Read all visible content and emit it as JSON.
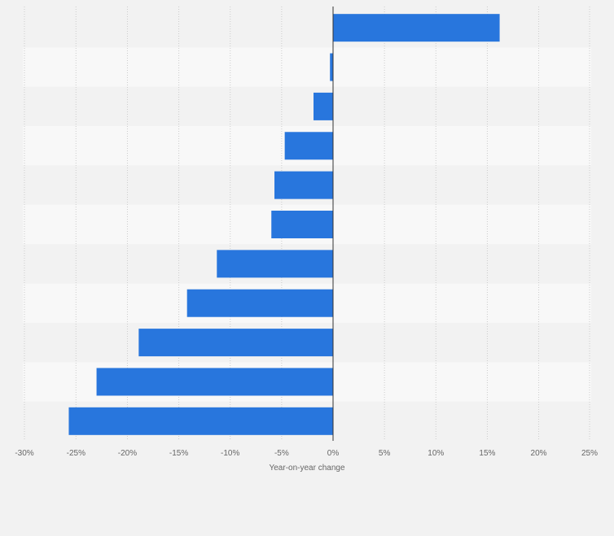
{
  "chart_data": {
    "type": "bar",
    "orientation": "horizontal",
    "categories": [
      "",
      "",
      "",
      "",
      "",
      "",
      "",
      "",
      "",
      "",
      ""
    ],
    "values": [
      16.2,
      -0.3,
      -1.9,
      -4.7,
      -5.7,
      -6.0,
      -11.3,
      -14.2,
      -18.9,
      -23.0,
      -25.7
    ],
    "xlabel": "Year-on-year change",
    "ylabel": "",
    "xlim": [
      -30,
      25
    ],
    "x_ticks": [
      -30,
      -25,
      -20,
      -15,
      -10,
      -5,
      0,
      5,
      10,
      15,
      20,
      25
    ],
    "x_tick_labels": [
      "-30%",
      "-25%",
      "-20%",
      "-15%",
      "-10%",
      "-5%",
      "0%",
      "5%",
      "10%",
      "15%",
      "20%",
      "25%"
    ],
    "grid": true,
    "legend": "none",
    "colors": {
      "bar": "#2876dd",
      "band_even": "#f2f2f2",
      "band_odd": "#f8f8f8",
      "background": "#f2f2f2",
      "zero_line": "#333333",
      "grid": "#cccccc"
    }
  }
}
